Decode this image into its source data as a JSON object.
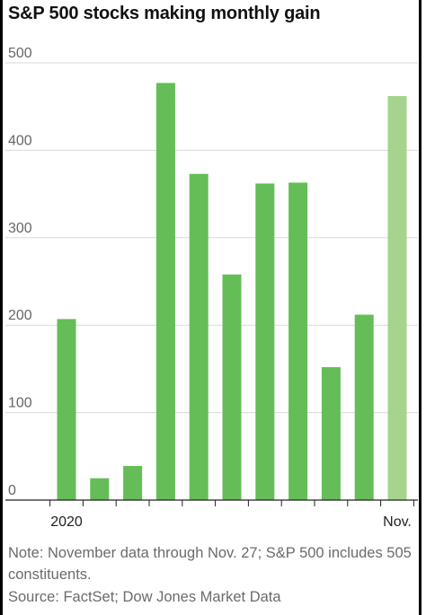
{
  "title": "S&P 500 stocks making monthly gain",
  "note": "Note: November data through Nov. 27; S&P 500 includes 505 constituents.",
  "source": "Source: FactSet; Dow Jones Market Data",
  "colors": {
    "bar": "#64bd57",
    "bar_partial": "#a4d48d"
  },
  "chart_data": {
    "type": "bar",
    "title": "S&P 500 stocks making monthly gain",
    "xlabel": "",
    "ylabel": "",
    "ylim": [
      0,
      500
    ],
    "yticks": [
      0,
      100,
      200,
      300,
      400,
      500
    ],
    "x_tick_labels": [
      "2020",
      "",
      "",
      "",
      "",
      "",
      "",
      "",
      "",
      "",
      "Nov."
    ],
    "values": [
      207,
      25,
      39,
      477,
      373,
      258,
      362,
      363,
      152,
      212,
      462
    ],
    "partial_index": 10,
    "grid": true
  }
}
